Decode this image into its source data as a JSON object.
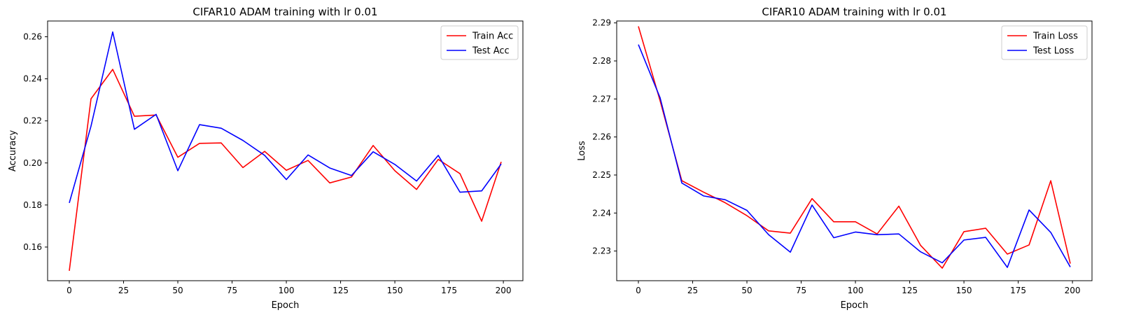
{
  "colors": {
    "train": "#ff0000",
    "test": "#0000ff",
    "axis": "#000000",
    "legend_border": "#cccccc"
  },
  "chart_data": [
    {
      "type": "line",
      "title": "CIFAR10 ADAM training with lr 0.01",
      "xlabel": "Epoch",
      "ylabel": "Accuracy",
      "xlim": [
        -10,
        209
      ],
      "ylim": [
        0.144,
        0.2675
      ],
      "xticks": [
        0,
        25,
        50,
        75,
        100,
        125,
        150,
        175,
        200
      ],
      "yticks": [
        0.16,
        0.18,
        0.2,
        0.22,
        0.24,
        0.26
      ],
      "ytick_labels": [
        "0.16",
        "0.18",
        "0.20",
        "0.22",
        "0.24",
        "0.26"
      ],
      "legend": "top-right",
      "grid": false,
      "x": [
        0,
        10,
        20,
        30,
        40,
        50,
        60,
        70,
        80,
        90,
        100,
        110,
        120,
        130,
        140,
        150,
        160,
        170,
        180,
        190,
        199
      ],
      "series": [
        {
          "name": "Train Acc",
          "color": "#ff0000",
          "values": [
            0.1487,
            0.2305,
            0.2445,
            0.2222,
            0.2228,
            0.2027,
            0.2093,
            0.2095,
            0.1978,
            0.2055,
            0.1965,
            0.2012,
            0.1905,
            0.1933,
            0.2083,
            0.1963,
            0.1874,
            0.2017,
            0.1949,
            0.1723,
            0.2005
          ]
        },
        {
          "name": "Test Acc",
          "color": "#0000ff",
          "values": [
            0.181,
            0.2175,
            0.2623,
            0.216,
            0.2231,
            0.1963,
            0.2182,
            0.2165,
            0.2107,
            0.2036,
            0.1921,
            0.2038,
            0.1976,
            0.194,
            0.2053,
            0.1993,
            0.1914,
            0.2036,
            0.1861,
            0.1867,
            0.1995
          ]
        }
      ]
    },
    {
      "type": "line",
      "title": "CIFAR10 ADAM training with lr 0.01",
      "xlabel": "Epoch",
      "ylabel": "Loss",
      "xlim": [
        -10,
        209
      ],
      "ylim": [
        2.2222,
        2.2905
      ],
      "xticks": [
        0,
        25,
        50,
        75,
        100,
        125,
        150,
        175,
        200
      ],
      "yticks": [
        2.23,
        2.24,
        2.25,
        2.26,
        2.27,
        2.28,
        2.29
      ],
      "ytick_labels": [
        "2.23",
        "2.24",
        "2.25",
        "2.26",
        "2.27",
        "2.28",
        "2.29"
      ],
      "legend": "top-right",
      "grid": false,
      "x": [
        0,
        10,
        20,
        30,
        40,
        50,
        60,
        70,
        80,
        90,
        100,
        110,
        120,
        130,
        140,
        150,
        160,
        170,
        180,
        190,
        199
      ],
      "series": [
        {
          "name": "Train Loss",
          "color": "#ff0000",
          "values": [
            2.2891,
            2.2695,
            2.2485,
            2.2455,
            2.2427,
            2.2393,
            2.2353,
            2.2347,
            2.2438,
            2.2377,
            2.2377,
            2.2345,
            2.2418,
            2.2315,
            2.2255,
            2.2351,
            2.236,
            2.2292,
            2.2316,
            2.2485,
            2.2267
          ]
        },
        {
          "name": "Test Loss",
          "color": "#0000ff",
          "values": [
            2.2843,
            2.2703,
            2.2479,
            2.2445,
            2.2435,
            2.2407,
            2.2343,
            2.2297,
            2.2421,
            2.2335,
            2.235,
            2.2343,
            2.2345,
            2.2298,
            2.2269,
            2.2329,
            2.2336,
            2.2257,
            2.2408,
            2.2349,
            2.2258
          ]
        }
      ]
    }
  ]
}
